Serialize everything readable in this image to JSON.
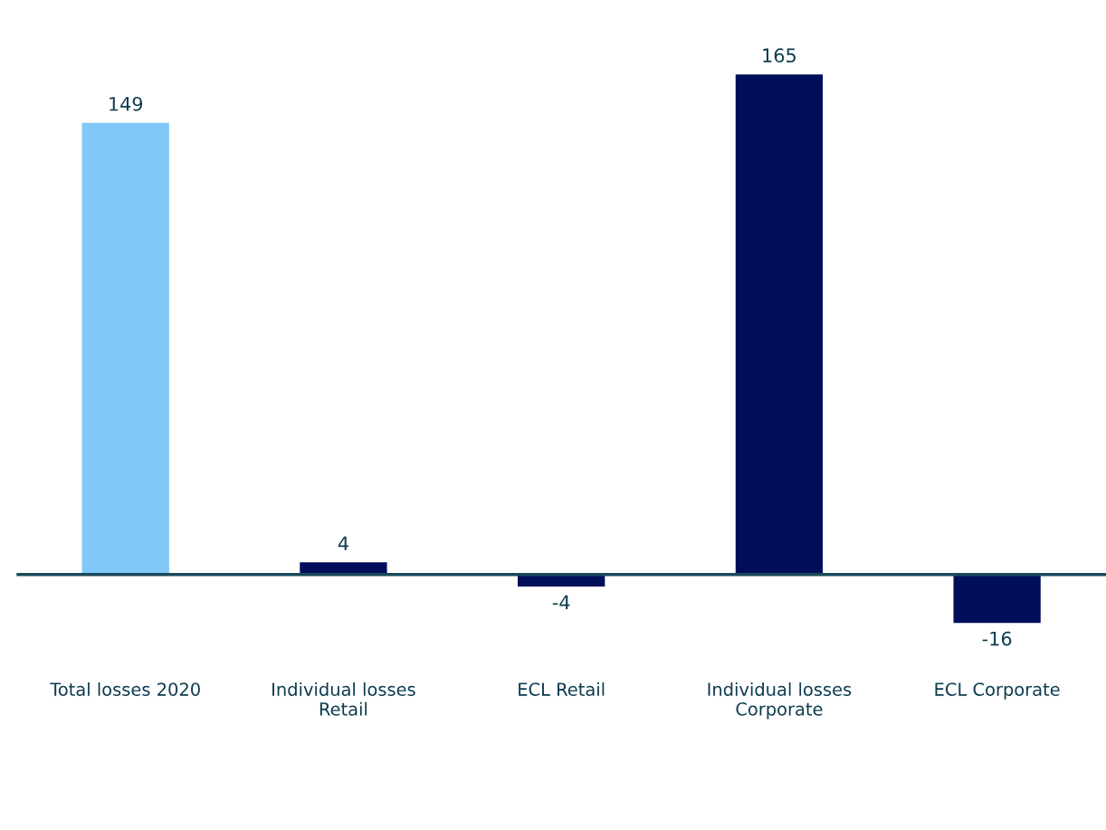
{
  "chart_data": {
    "type": "bar",
    "categories": [
      "Total losses 2020",
      "Individual losses\nRetail",
      "ECL Retail",
      "Individual losses\nCorporate",
      "ECL Corporate"
    ],
    "values": [
      149,
      4,
      -4,
      165,
      -16
    ],
    "colors": [
      "#7fc8f8",
      "#000e5a",
      "#000e5a",
      "#000e5a",
      "#000e5a"
    ],
    "data_labels": true,
    "grid": false,
    "legend": false
  }
}
